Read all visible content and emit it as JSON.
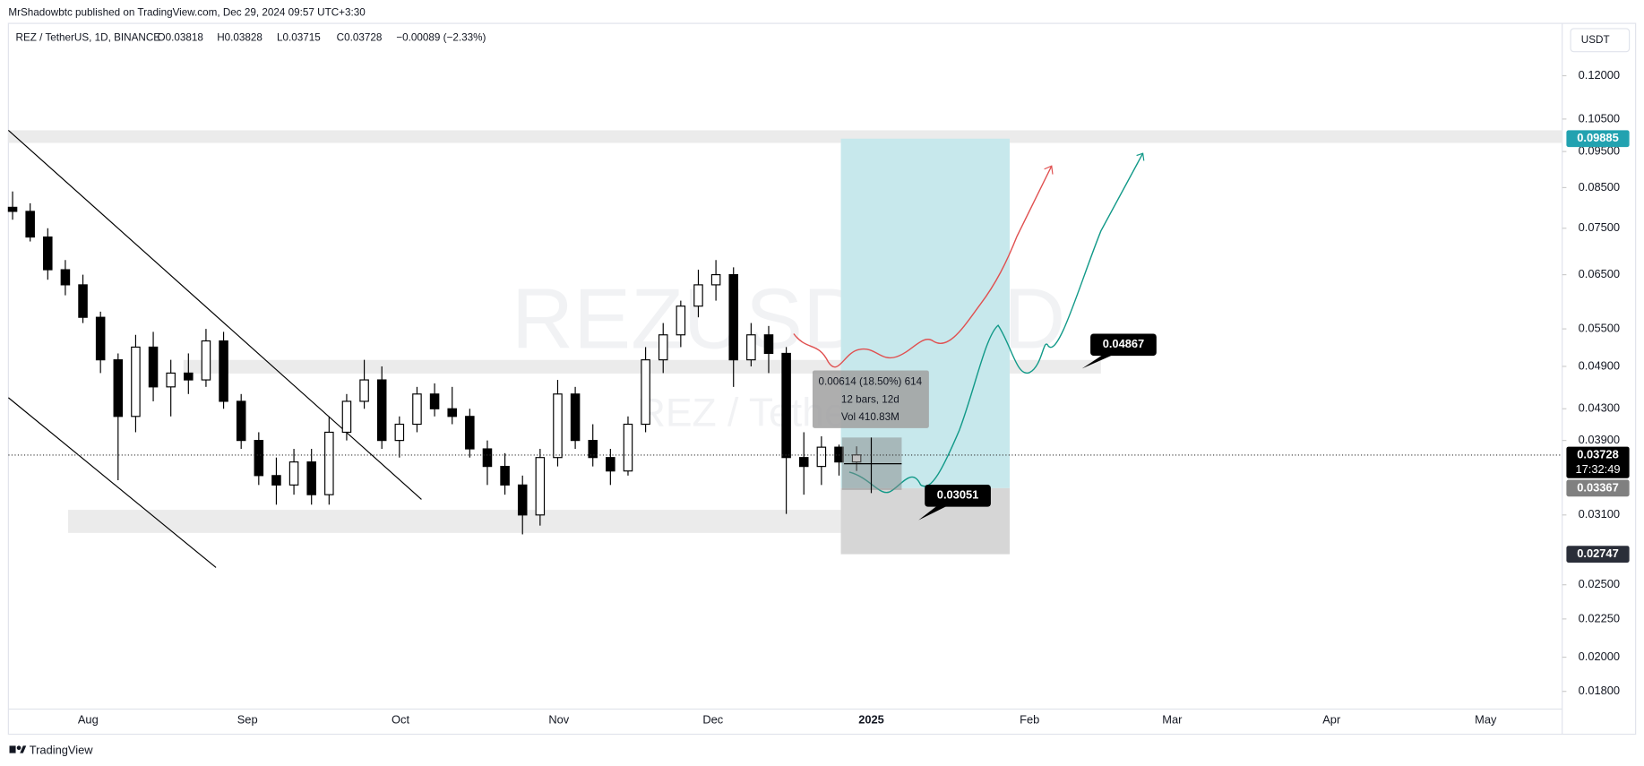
{
  "header": {
    "published": "MrShadowbtc published on TradingView.com, Dec 29, 2024 09:57 UTC+3:30"
  },
  "chart_data": {
    "type": "candlestick",
    "symbol": "REZ / TetherUS, 1D, BINANCE",
    "ohlc": [
      "O0.03818",
      "H0.03828",
      "L0.03715",
      "C0.03728",
      "−0.00089 (−2.33%)"
    ],
    "currency_button": "USDT",
    "watermark": "REZUSDT, 1D",
    "watermark_sub": "REZ / TetherUS",
    "log_scale": true,
    "ylim": [
      0.0171,
      0.141
    ],
    "yticks": [
      {
        "value": 0.12,
        "label": "0.12000"
      },
      {
        "value": 0.105,
        "label": "0.10500"
      },
      {
        "value": 0.095,
        "label": "0.09500"
      },
      {
        "value": 0.085,
        "label": "0.08500"
      },
      {
        "value": 0.075,
        "label": "0.07500"
      },
      {
        "value": 0.065,
        "label": "0.06500"
      },
      {
        "value": 0.055,
        "label": "0.05500"
      },
      {
        "value": 0.049,
        "label": "0.04900"
      },
      {
        "value": 0.043,
        "label": "0.04300"
      },
      {
        "value": 0.039,
        "label": "0.03900"
      },
      {
        "value": 0.031,
        "label": "0.03100"
      },
      {
        "value": 0.025,
        "label": "0.02500"
      },
      {
        "value": 0.0225,
        "label": "0.02250"
      },
      {
        "value": 0.02,
        "label": "0.02000"
      },
      {
        "value": 0.018,
        "label": "0.01800"
      }
    ],
    "x_labels": [
      "Aug",
      "Sep",
      "Oct",
      "Nov",
      "Dec",
      "2025",
      "Feb",
      "Mar",
      "Apr",
      "May"
    ],
    "up_color": "#ffffff",
    "down_color": "#000000",
    "open": [
      0.08,
      0.079,
      0.073,
      0.066,
      0.063,
      0.057,
      0.05,
      0.042,
      0.052,
      0.046,
      0.048,
      0.047,
      0.053,
      0.044,
      0.039,
      0.035,
      0.034,
      0.0365,
      0.033,
      0.04,
      0.044,
      0.047,
      0.039,
      0.041,
      0.045,
      0.043,
      0.042,
      0.038,
      0.036,
      0.034,
      0.031,
      0.037,
      0.045,
      0.039,
      0.037,
      0.0355,
      0.041,
      0.05,
      0.054,
      0.059,
      0.063,
      0.065,
      0.05,
      0.054,
      0.051,
      0.037,
      0.036,
      0.0382,
      0.0365
    ],
    "high": [
      0.084,
      0.081,
      0.075,
      0.068,
      0.065,
      0.058,
      0.051,
      0.054,
      0.0545,
      0.05,
      0.051,
      0.055,
      0.0545,
      0.045,
      0.04,
      0.037,
      0.038,
      0.038,
      0.042,
      0.045,
      0.05,
      0.049,
      0.042,
      0.046,
      0.0465,
      0.046,
      0.043,
      0.039,
      0.0375,
      0.035,
      0.038,
      0.047,
      0.046,
      0.041,
      0.038,
      0.042,
      0.052,
      0.056,
      0.06,
      0.066,
      0.068,
      0.0665,
      0.056,
      0.0555,
      0.052,
      0.04,
      0.0395,
      0.0385,
      0.0383
    ],
    "low": [
      0.077,
      0.072,
      0.064,
      0.061,
      0.056,
      0.048,
      0.0345,
      0.04,
      0.044,
      0.042,
      0.045,
      0.046,
      0.043,
      0.038,
      0.034,
      0.032,
      0.033,
      0.032,
      0.032,
      0.039,
      0.043,
      0.038,
      0.037,
      0.04,
      0.042,
      0.041,
      0.037,
      0.034,
      0.033,
      0.0292,
      0.03,
      0.036,
      0.038,
      0.036,
      0.034,
      0.035,
      0.04,
      0.048,
      0.052,
      0.057,
      0.06,
      0.046,
      0.049,
      0.048,
      0.0311,
      0.033,
      0.034,
      0.035,
      0.0355
    ],
    "close": [
      0.079,
      0.073,
      0.066,
      0.063,
      0.057,
      0.05,
      0.042,
      0.052,
      0.046,
      0.048,
      0.047,
      0.053,
      0.044,
      0.039,
      0.035,
      0.034,
      0.0365,
      0.033,
      0.04,
      0.044,
      0.047,
      0.039,
      0.041,
      0.045,
      0.043,
      0.042,
      0.038,
      0.036,
      0.034,
      0.031,
      0.037,
      0.045,
      0.039,
      0.037,
      0.0355,
      0.041,
      0.05,
      0.054,
      0.059,
      0.063,
      0.065,
      0.05,
      0.054,
      0.051,
      0.037,
      0.036,
      0.0382,
      0.0365,
      0.0373
    ],
    "last_price": 0.03728,
    "countdown": "17:32:49",
    "position": {
      "target": 0.09885,
      "entry": 0.03367,
      "stop": 0.02747
    },
    "annotations": [
      0.04867,
      0.03051
    ],
    "measure": [
      "0.00614 (18.50%) 614",
      "12 bars, 12d",
      "Vol 410.83M"
    ]
  },
  "footer": {
    "brand": "TradingView"
  }
}
